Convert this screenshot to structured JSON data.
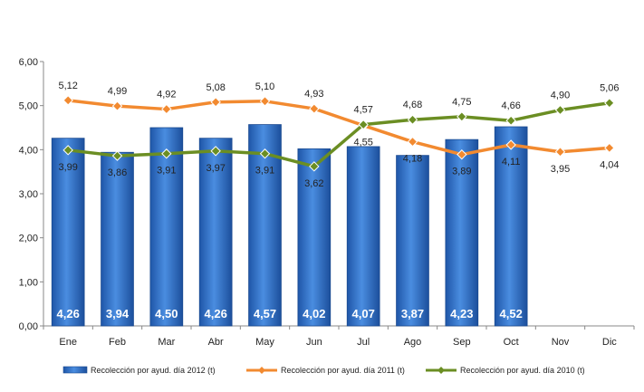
{
  "chart_data": {
    "type": "bar",
    "categories": [
      "Ene",
      "Feb",
      "Mar",
      "Abr",
      "May",
      "Jun",
      "Jul",
      "Ago",
      "Sep",
      "Oct",
      "Nov",
      "Dic"
    ],
    "ylim": [
      0,
      6
    ],
    "yticks": [
      "0,00",
      "1,00",
      "2,00",
      "3,00",
      "4,00",
      "5,00",
      "6,00"
    ],
    "grid": false,
    "legend_position": "bottom",
    "series": [
      {
        "name": "Recolección por ayud. día 2012 (t)",
        "type": "bar",
        "color": "#2e6fc6",
        "values": [
          4.26,
          3.94,
          4.5,
          4.26,
          4.57,
          4.02,
          4.07,
          3.87,
          4.23,
          4.52,
          null,
          null
        ],
        "labels": [
          "4,26",
          "3,94",
          "4,50",
          "4,26",
          "4,57",
          "4,02",
          "4,07",
          "3,87",
          "4,23",
          "4,52",
          "",
          ""
        ]
      },
      {
        "name": "Recolección por ayud. día 2011 (t)",
        "type": "line",
        "color": "#f28a30",
        "values": [
          5.12,
          4.99,
          4.92,
          5.08,
          5.1,
          4.93,
          4.55,
          4.18,
          3.89,
          4.11,
          3.95,
          4.04
        ],
        "labels": [
          "5,12",
          "4,99",
          "4,92",
          "5,08",
          "5,10",
          "4,93",
          "4,55",
          "4,18",
          "3,89",
          "4,11",
          "3,95",
          "4,04"
        ]
      },
      {
        "name": "Recolección por ayud. día 2010 (t)",
        "type": "line",
        "color": "#6b8e23",
        "values": [
          3.99,
          3.86,
          3.91,
          3.97,
          3.91,
          3.62,
          4.57,
          4.68,
          4.75,
          4.66,
          4.9,
          5.06
        ],
        "labels": [
          "3,99",
          "3,86",
          "3,91",
          "3,97",
          "3,91",
          "3,62",
          "4,57",
          "4,68",
          "4,75",
          "4,66",
          "4,90",
          "5,06"
        ]
      }
    ]
  }
}
